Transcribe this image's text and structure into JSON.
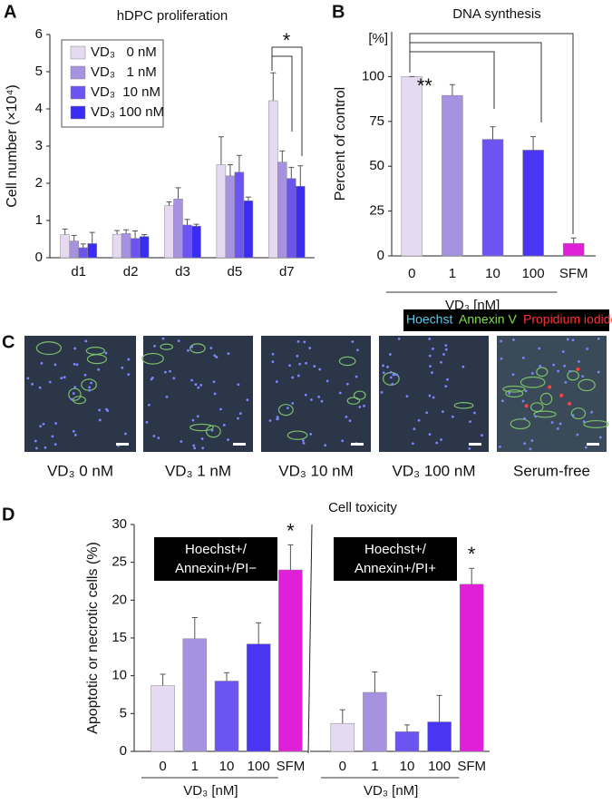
{
  "panel_labels": [
    "A",
    "B",
    "C",
    "D"
  ],
  "chart_data": [
    {
      "type": "bar",
      "title": "hDPC proliferation",
      "y_label": "Cell number (×10⁴)",
      "categories": [
        "d1",
        "d2",
        "d3",
        "d5",
        "d7"
      ],
      "series": [
        {
          "name": "VD₃   0 nM",
          "color": "#e6d9f2",
          "values": [
            0.62,
            0.63,
            1.4,
            2.5,
            4.22
          ],
          "errors": [
            0.15,
            0.1,
            0.1,
            0.75,
            0.75
          ]
        },
        {
          "name": "VD₃   1 nM",
          "color": "#a692e0",
          "values": [
            0.45,
            0.65,
            1.58,
            2.2,
            2.57
          ],
          "errors": [
            0.15,
            0.1,
            0.3,
            0.3,
            0.3
          ]
        },
        {
          "name": "VD₃  10 nM",
          "color": "#6c54f0",
          "values": [
            0.27,
            0.52,
            0.88,
            2.3,
            2.13
          ],
          "errors": [
            0.1,
            0.2,
            0.15,
            0.45,
            0.3
          ]
        },
        {
          "name": "VD₃ 100 nM",
          "color": "#3a2cf2",
          "values": [
            0.38,
            0.57,
            0.85,
            1.53,
            1.92
          ],
          "errors": [
            0.3,
            0.05,
            0.05,
            0.1,
            0.55
          ]
        }
      ],
      "ylim": [
        0,
        6
      ],
      "yticks": [
        0,
        1,
        2,
        3,
        4,
        5,
        6
      ],
      "legend": "upper left",
      "significance": "*"
    },
    {
      "type": "bar",
      "title": "DNA synthesis",
      "y_label": "Percent of control",
      "y_unit": "[%]",
      "categories": [
        "0",
        "1",
        "10",
        "100",
        "SFM"
      ],
      "group_label": "VD₃ [nM]",
      "values": [
        100,
        89.5,
        65,
        59,
        7
      ],
      "errors": [
        0,
        6,
        7,
        7.5,
        3
      ],
      "colors": [
        "#e6d9f2",
        "#a692e0",
        "#6c54f0",
        "#4a36f2",
        "#e020d8"
      ],
      "ylim": [
        0,
        125
      ],
      "yticks": [
        0,
        25,
        50,
        75,
        100
      ],
      "significance": "**"
    },
    {
      "type": "bar",
      "title": "Cell toxicity",
      "y_label": "Apoptotic or necrotic cells (%)",
      "annotation_lines": [
        "Hoechst+/",
        "Annexin+/PI−"
      ],
      "categories": [
        "0",
        "1",
        "10",
        "100",
        "SFM"
      ],
      "group_label": "VD₃ [nM]",
      "values": [
        8.7,
        14.9,
        9.3,
        14.2,
        24
      ],
      "errors": [
        1.5,
        2.8,
        1.1,
        2.8,
        3.3
      ],
      "colors": [
        "#e6d9f2",
        "#a692e0",
        "#6c54f0",
        "#4a36f2",
        "#e020d8"
      ],
      "ylim": [
        0,
        30
      ],
      "yticks": [
        0,
        5,
        10,
        15,
        20,
        25,
        30
      ],
      "significance": "*"
    },
    {
      "type": "bar",
      "annotation_lines": [
        "Hoechst+/",
        "Annexin+/PI+"
      ],
      "categories": [
        "0",
        "1",
        "10",
        "100",
        "SFM"
      ],
      "group_label": "VD₃ [nM]",
      "values": [
        3.7,
        7.8,
        2.6,
        3.9,
        22.1
      ],
      "errors": [
        1.8,
        2.7,
        0.9,
        3.5,
        2.1
      ],
      "colors": [
        "#e6d9f2",
        "#a692e0",
        "#6c54f0",
        "#4a36f2",
        "#e020d8"
      ],
      "ylim": [
        0,
        30
      ],
      "significance": "*"
    }
  ],
  "micrographs": {
    "stain_labels": [
      "Hoechst",
      "Annexin V",
      "Propidium iodide"
    ],
    "captions": [
      "VD₃ 0 nM",
      "VD₃ 1 nM",
      "VD₃ 10 nM",
      "VD₃ 100 nM",
      "Serum-free"
    ]
  }
}
